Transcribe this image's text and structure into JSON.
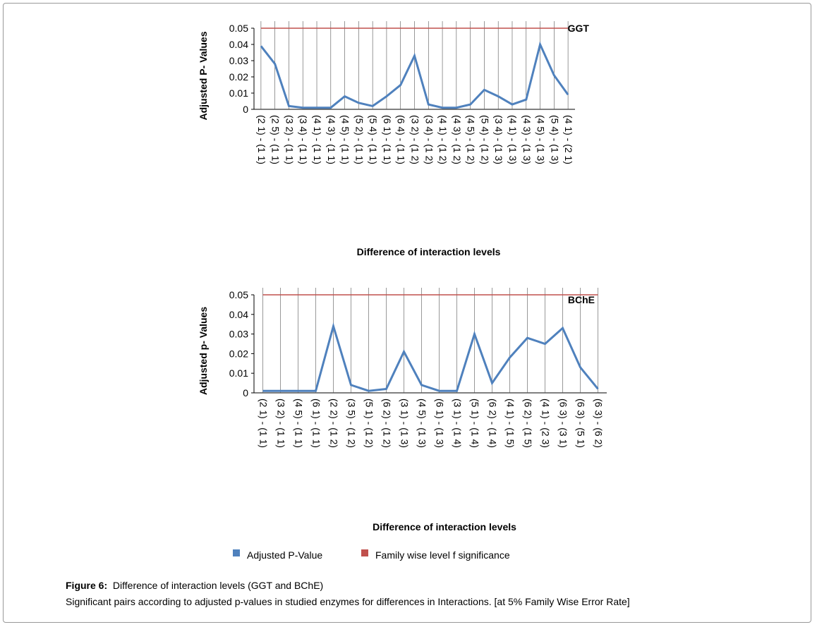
{
  "chart_data": [
    {
      "type": "line",
      "title": "GGT",
      "y_label": "Adjusted P- Values",
      "x_label": "Difference of interaction levels",
      "categories": [
        "(2 1) - (1 1)",
        "(2 5) - (1 1)",
        "(3 2) - (1 1)",
        "(3 4) - (1 1)",
        "(4 1) - (1 1)",
        "(4 3) - (1 1)",
        "(4 5) - (1 1)",
        "(5 2) - (1 1)",
        "(5 4) - (1 1)",
        "(6 1) - (1 1)",
        "(6 4) - (1 1)",
        "(3 2) - (1 2)",
        "(3 4) - (1 2)",
        "(4 1) - (1 2)",
        "(4 3) - (1 2)",
        "(4 5) - (1 2)",
        "(5 4) - (1 2)",
        "(3 4) - (1 3)",
        "(4 1) - (1 3)",
        "(4 3) - (1 3)",
        "(4 5) - (1 3)",
        "(5 4) - (1 3)",
        "(4 1) - (2 1)"
      ],
      "series": [
        {
          "color": "#4f81bd",
          "values": [
            0.039,
            0.028,
            0.002,
            0.001,
            0.001,
            0.001,
            0.008,
            0.004,
            0.002,
            0.008,
            0.015,
            0.033,
            0.003,
            0.001,
            0.001,
            0.003,
            0.012,
            0.008,
            0.003,
            0.006,
            0.04,
            0.021,
            0.009
          ]
        },
        {
          "color": "#c0504d",
          "values": [
            0.05,
            0.05,
            0.05,
            0.05,
            0.05,
            0.05,
            0.05,
            0.05,
            0.05,
            0.05,
            0.05,
            0.05,
            0.05,
            0.05,
            0.05,
            0.05,
            0.05,
            0.05,
            0.05,
            0.05,
            0.05,
            0.05,
            0.05
          ]
        }
      ],
      "ylim": [
        0,
        0.05
      ],
      "yticks": [
        0,
        0.01,
        0.02,
        0.03,
        0.04,
        0.05
      ]
    },
    {
      "type": "line",
      "title": "BChE",
      "y_label": "Adjusted p- Values",
      "x_label": "Difference of interaction levels",
      "categories": [
        "(2 1) - (1 1)",
        "(3 2) - (1 1)",
        "(4 5) - (1 1)",
        "(6 1) - (1 1)",
        "(2 2) - (1 2)",
        "(3 5) - (1 2)",
        "(5 1) - (1 2)",
        "(6 2) - (1 2)",
        "(3 1) - (1 3)",
        "(4 5) - (1 3)",
        "(6 1) - (1 3)",
        "(3 1) - (1 4)",
        "(5 1) - (1 4)",
        "(6 2) - (1 4)",
        "(4 1) - (1 5)",
        "(6 2) - (1 5)",
        "(4 1) - (2 3)",
        "(6 3) - (3 1)",
        "(6 3) - (5 1)",
        "(6 3) - (6 2)"
      ],
      "series": [
        {
          "name": "Adjusted P-Value",
          "color": "#4f81bd",
          "values": [
            0.001,
            0.001,
            0.001,
            0.001,
            0.034,
            0.004,
            0.001,
            0.002,
            0.021,
            0.004,
            0.001,
            0.001,
            0.03,
            0.005,
            0.018,
            0.028,
            0.025,
            0.033,
            0.013,
            0.002
          ]
        },
        {
          "name": "Family wise level f significance",
          "color": "#c0504d",
          "values": [
            0.05,
            0.05,
            0.05,
            0.05,
            0.05,
            0.05,
            0.05,
            0.05,
            0.05,
            0.05,
            0.05,
            0.05,
            0.05,
            0.05,
            0.05,
            0.05,
            0.05,
            0.05,
            0.05,
            0.05
          ]
        }
      ],
      "ylim": [
        0,
        0.05
      ],
      "yticks": [
        0,
        0.01,
        0.02,
        0.03,
        0.04,
        0.05
      ]
    }
  ],
  "caption": {
    "label": "Figure 6:",
    "title": "Difference of interaction levels (GGT and BChE)",
    "text": "Significant pairs according to adjusted p-values in studied enzymes for differences in Interactions. [at 5% Family Wise Error Rate]"
  }
}
